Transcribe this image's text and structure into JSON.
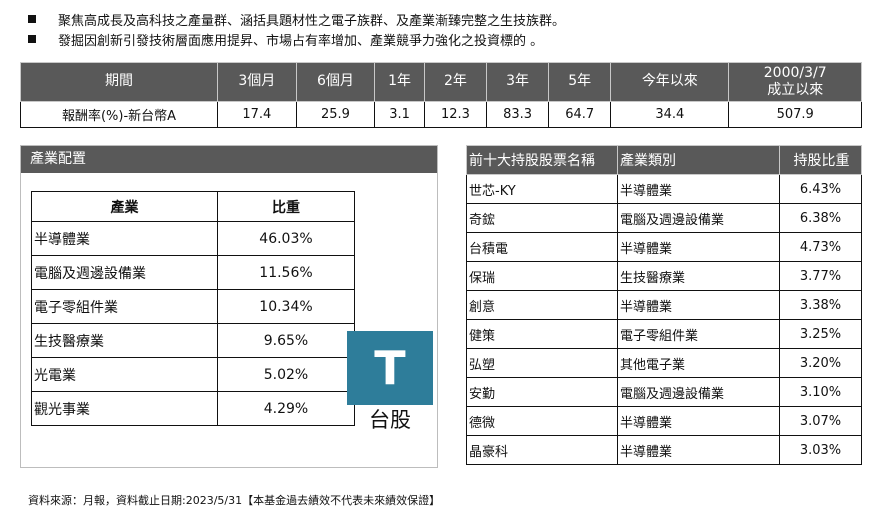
{
  "bullets": [
    "聚焦高成長及高科技之產量群、涵括具題材性之電子族群、及產業漸臻完整之生技族群。",
    "發掘因創新引發技術層面應用提昇、市場占有率增加、產業競爭力強化之投資標的 。"
  ],
  "performance": {
    "headers": [
      "期間",
      "3個月",
      "6個月",
      "1年",
      "2年",
      "3年",
      "5年",
      "今年以來",
      "2000/3/7",
      "成立以來"
    ],
    "row_label": "報酬率(%)-新台幣A",
    "values": [
      "17.4",
      "25.9",
      "3.1",
      "12.3",
      "83.3",
      "64.7",
      "34.4",
      "507.9"
    ]
  },
  "industry": {
    "title": "產業配置",
    "col_industry": "產業",
    "col_weight": "比重",
    "rows": [
      {
        "name": "半導體業",
        "weight": "46.03%"
      },
      {
        "name": "電腦及週邊設備業",
        "weight": "11.56%"
      },
      {
        "name": "電子零組件業",
        "weight": "10.34%"
      },
      {
        "name": "生技醫療業",
        "weight": "9.65%"
      },
      {
        "name": "光電業",
        "weight": "5.02%"
      },
      {
        "name": "觀光事業",
        "weight": "4.29%"
      }
    ]
  },
  "logo": {
    "letter": "T",
    "label": "台股"
  },
  "top10": {
    "col_name": "前十大持股股票名稱",
    "col_industry": "產業類別",
    "col_weight": "持股比重",
    "rows": [
      {
        "name": "世芯-KY",
        "industry": "半導體業",
        "weight": "6.43%"
      },
      {
        "name": "奇鋐",
        "industry": "電腦及週邊設備業",
        "weight": "6.38%"
      },
      {
        "name": "台積電",
        "industry": "半導體業",
        "weight": "4.73%"
      },
      {
        "name": "保瑞",
        "industry": "生技醫療業",
        "weight": "3.77%"
      },
      {
        "name": "創意",
        "industry": "半導體業",
        "weight": "3.38%"
      },
      {
        "name": "健策",
        "industry": "電子零組件業",
        "weight": "3.25%"
      },
      {
        "name": "弘塑",
        "industry": "其他電子業",
        "weight": "3.20%"
      },
      {
        "name": "安勤",
        "industry": "電腦及週邊設備業",
        "weight": "3.10%"
      },
      {
        "name": "德微",
        "industry": "半導體業",
        "weight": "3.07%"
      },
      {
        "name": "晶豪科",
        "industry": "半導體業",
        "weight": "3.03%"
      }
    ]
  },
  "footer": "資料來源：月報，資料截止日期:2023/5/31【本基金過去績效不代表未來績效保證】"
}
